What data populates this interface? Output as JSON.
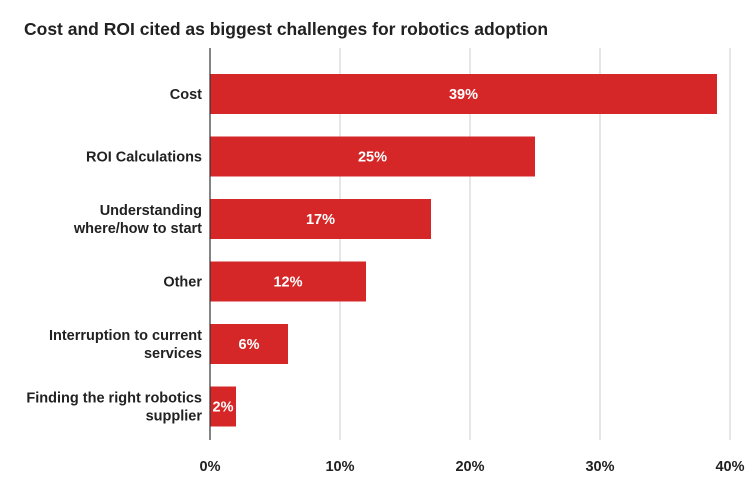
{
  "chart_data": {
    "type": "bar",
    "orientation": "horizontal",
    "title": "Cost and ROI cited as biggest challenges for robotics adoption",
    "categories": [
      [
        "Cost"
      ],
      [
        "ROI Calculations"
      ],
      [
        "Understanding",
        "where/how to start"
      ],
      [
        "Other"
      ],
      [
        "Interruption to current",
        "services"
      ],
      [
        "Finding the right robotics",
        "supplier"
      ]
    ],
    "values": [
      39,
      25,
      17,
      12,
      6,
      2
    ],
    "data_labels": [
      "39%",
      "25%",
      "17%",
      "12%",
      "6%",
      "2%"
    ],
    "xlim": [
      0,
      40
    ],
    "ticks": [
      0,
      10,
      20,
      30,
      40
    ],
    "tick_labels": [
      "0%",
      "10%",
      "20%",
      "30%",
      "40%"
    ],
    "xlabel": "",
    "ylabel": "",
    "grid": true,
    "legend": "none",
    "colors": {
      "bar": "#d62728",
      "grid": "#cccccc",
      "axis": "#333333",
      "text": "#212121"
    }
  }
}
